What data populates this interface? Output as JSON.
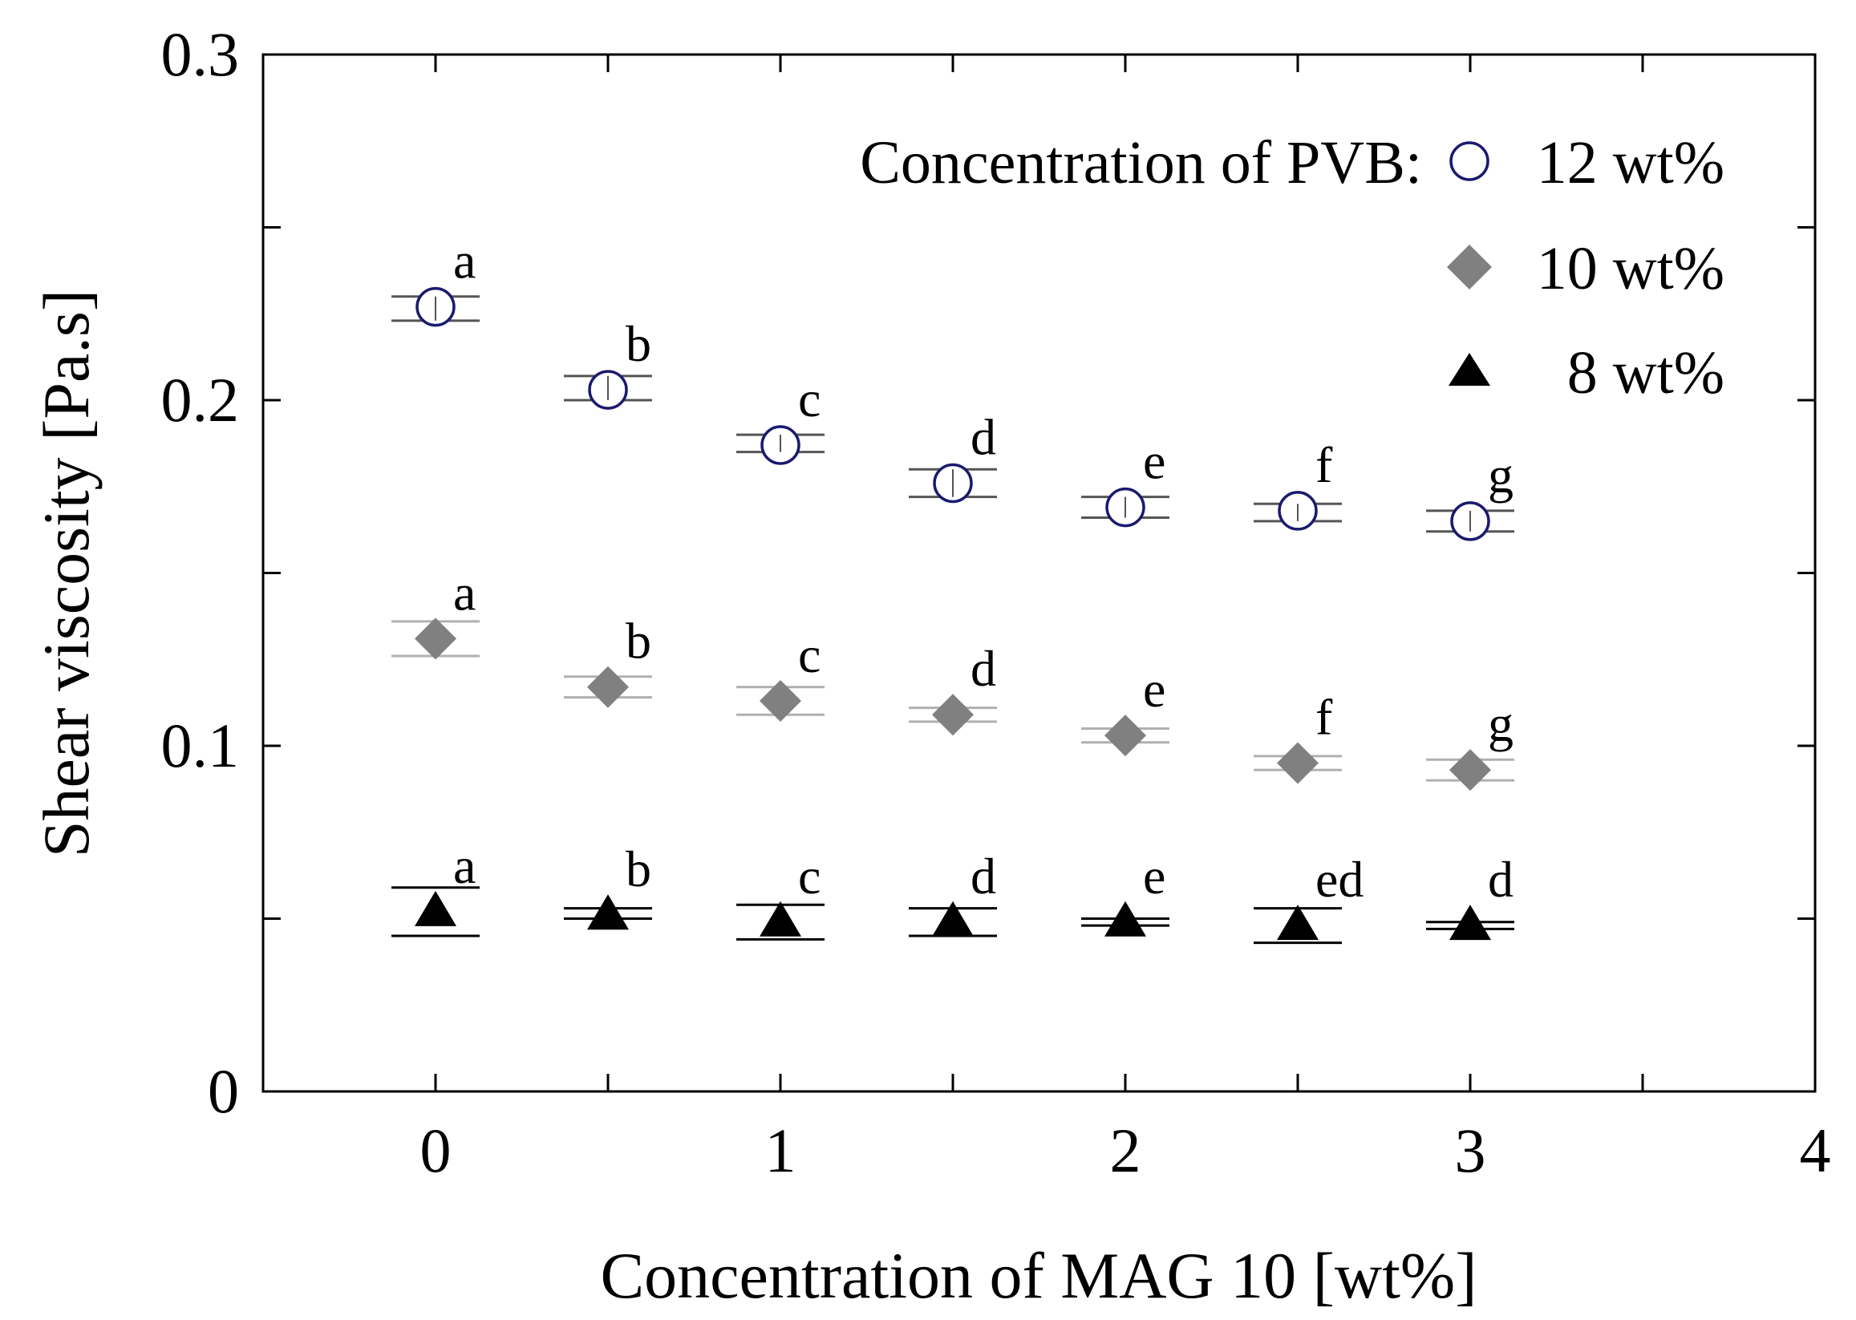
{
  "chart_data": {
    "type": "scatter",
    "xlabel": "Concentration of MAG 10 [wt%]",
    "ylabel": "Shear viscosity [Pa.s]",
    "xlim": [
      -0.5,
      4
    ],
    "ylim": [
      0,
      0.3
    ],
    "xticks": [
      0,
      1,
      2,
      3,
      4
    ],
    "xtick_labels": [
      "0",
      "1",
      "2",
      "3",
      "4"
    ],
    "yticks": [
      0,
      0.1,
      0.2,
      0.3
    ],
    "ytick_labels": [
      "0",
      "0.1",
      "0.2",
      "0.3"
    ],
    "legend_title": "Concentration  of  PVB:",
    "legend_position": "top-right",
    "x": [
      0,
      0.5,
      1,
      1.5,
      2,
      2.5,
      3
    ],
    "series": [
      {
        "name": "12 wt%",
        "marker": "open-circle",
        "color": "#1a1a6e",
        "values": [
          0.227,
          0.203,
          0.187,
          0.176,
          0.169,
          0.168,
          0.165
        ],
        "err_high": [
          0.23,
          0.207,
          0.19,
          0.18,
          0.172,
          0.17,
          0.168
        ],
        "err_low": [
          0.223,
          0.2,
          0.185,
          0.172,
          0.166,
          0.165,
          0.162
        ],
        "letters": [
          "a",
          "b",
          "c",
          "d",
          "e",
          "f",
          "g"
        ]
      },
      {
        "name": "10 wt%",
        "marker": "filled-diamond",
        "color": "#808080",
        "values": [
          0.131,
          0.117,
          0.113,
          0.109,
          0.103,
          0.095,
          0.093
        ],
        "err_high": [
          0.136,
          0.12,
          0.117,
          0.111,
          0.105,
          0.097,
          0.096
        ],
        "err_low": [
          0.126,
          0.114,
          0.109,
          0.107,
          0.101,
          0.093,
          0.09
        ],
        "letters": [
          "a",
          "b",
          "c",
          "d",
          "e",
          "f",
          "g"
        ]
      },
      {
        "name": "8 wt%",
        "marker": "filled-triangle",
        "color": "#000000",
        "values": [
          0.052,
          0.051,
          0.049,
          0.049,
          0.049,
          0.048,
          0.048
        ],
        "err_high": [
          0.059,
          0.053,
          0.054,
          0.053,
          0.05,
          0.053,
          0.049
        ],
        "err_low": [
          0.045,
          0.05,
          0.044,
          0.045,
          0.048,
          0.043,
          0.047
        ],
        "letters": [
          "a",
          "b",
          "c",
          "d",
          "e",
          "ed",
          "d"
        ]
      }
    ]
  }
}
